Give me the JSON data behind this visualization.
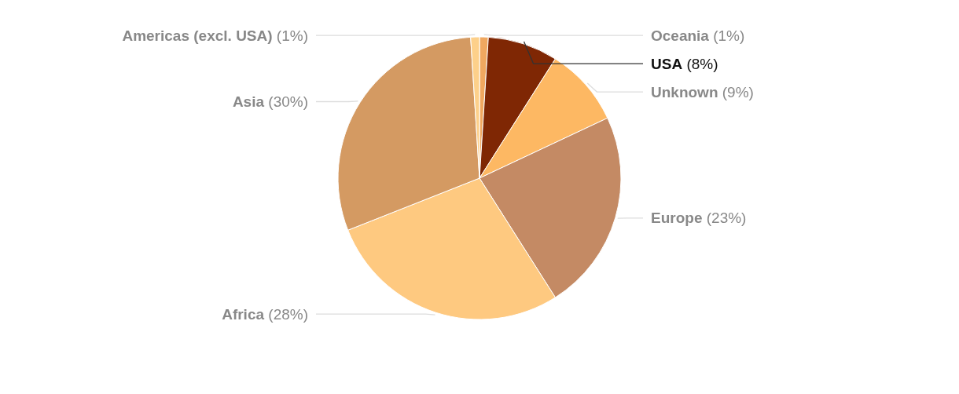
{
  "chart_data": {
    "type": "pie",
    "categories": [
      "Oceania",
      "USA",
      "Unknown",
      "Europe",
      "Africa",
      "Asia",
      "Americas (excl. USA)"
    ],
    "values": [
      1,
      8,
      9,
      23,
      28,
      30,
      1
    ],
    "value_labels": [
      "(1%)",
      "(8%)",
      "(9%)",
      "(23%)",
      "(28%)",
      "(30%)",
      "(1%)"
    ],
    "colors": [
      "#f0a860",
      "#7f2704",
      "#fdb863",
      "#c48a64",
      "#fec980",
      "#d49a62",
      "#fdd08a"
    ]
  }
}
